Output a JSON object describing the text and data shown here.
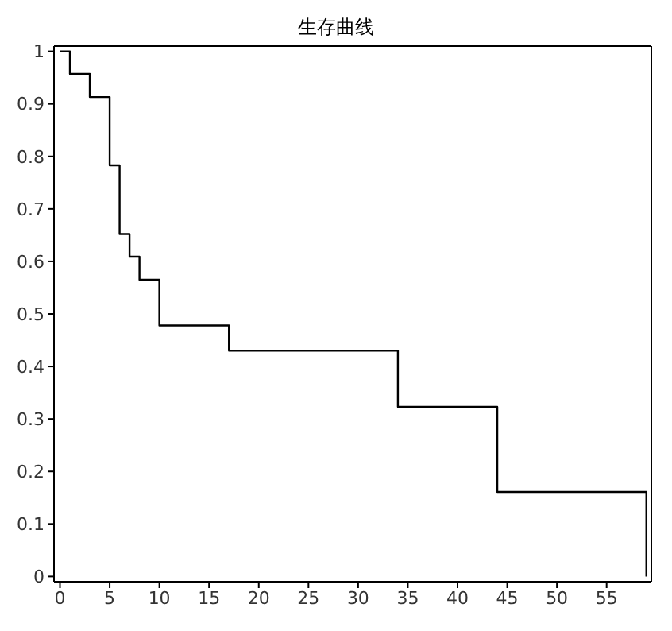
{
  "chart_data": {
    "type": "step",
    "title": "生存曲线",
    "x": [
      0,
      1,
      3,
      5,
      6,
      7,
      8,
      10,
      17,
      34,
      44,
      59
    ],
    "series": [
      {
        "color": "#000000",
        "values": [
          1,
          0.957,
          0.913,
          0.783,
          0.652,
          0.609,
          0.565,
          0.478,
          0.43,
          0.323,
          0.161,
          0
        ]
      }
    ],
    "xlim": [
      -0.6,
      59.5
    ],
    "xticks": [
      0,
      5,
      10,
      15,
      20,
      25,
      30,
      35,
      40,
      45,
      50,
      55
    ],
    "ylim": [
      -0.01,
      1.01
    ],
    "yticks": [
      0,
      0.1,
      0.2,
      0.3,
      0.4,
      0.5,
      0.6,
      0.7,
      0.8,
      0.9,
      1
    ],
    "grid": false,
    "legend": false,
    "marker": "none",
    "line_style": "solid"
  }
}
